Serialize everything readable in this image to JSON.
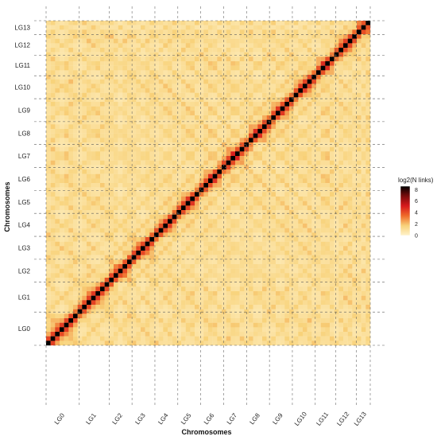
{
  "chart_data": {
    "type": "heatmap",
    "title": "",
    "xlabel": "Chromosomes",
    "ylabel": "Chromosomes",
    "chromosomes": [
      "LG0",
      "LG1",
      "LG2",
      "LG3",
      "LG4",
      "LG5",
      "LG6",
      "LG7",
      "LG8",
      "LG9",
      "LG10",
      "LG11",
      "LG12",
      "LG13"
    ],
    "boundaries": [
      0,
      14.5,
      27.5,
      37.5,
      47.5,
      57.5,
      67.5,
      77.5,
      87.5,
      97.5,
      107.5,
      117.5,
      126.5,
      135.5,
      141.5
    ],
    "heatmap_metric": "log2(N links)",
    "diagonal_value": 6.5,
    "background_value": 0.6,
    "legend": {
      "title": "log2(N links)",
      "ticks": [
        0,
        2,
        4,
        6,
        8
      ],
      "range": [
        0,
        8.6
      ],
      "placement": "right",
      "colors": [
        "#fff3cc",
        "#f8d27a",
        "#ef6b2a",
        "#d7191c",
        "#7a0c0c",
        "#000000"
      ]
    },
    "grid": true,
    "grid_style": "dashed"
  }
}
